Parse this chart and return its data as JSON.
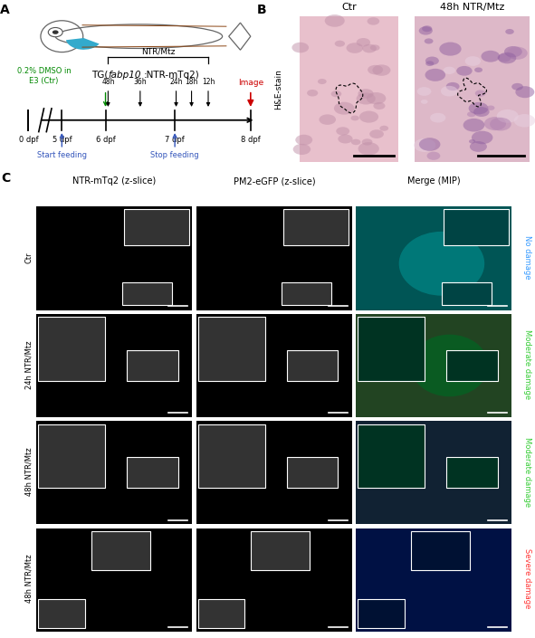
{
  "fig_width": 5.91,
  "fig_height": 7.05,
  "panel_A_label": "A",
  "panel_B_label": "B",
  "panel_C_label": "C",
  "tg_text": "TG(​fabp10​:NTR-mTq2)",
  "dmso_label": "0.2% DMSO in\nE3 (Ctr)",
  "ntr_label": "NTR/Mtz",
  "image_label": "Image",
  "start_feeding": "Start feeding",
  "stop_feeding": "Stop feeding",
  "ntr_times": [
    "48h",
    "36h",
    "24h",
    "18h",
    "12h"
  ],
  "ctr_label": "Ctr",
  "ntr48_label": "48h NTR/Mtz",
  "he_stain": "H&E-stain",
  "col1_title": "NTR-mTq2 (z-slice)",
  "col2_title": "PM2-eGFP (z-slice)",
  "col3_title": "Merge (MIP)",
  "row_labels_left": [
    "Ctr",
    "24h NTR/Mtz",
    "48h NTR/Mtz",
    "48h NTR/Mtz"
  ],
  "side_labels": [
    "No damage",
    "Moderate damage",
    "Moderate damage",
    "Severe damage"
  ],
  "side_label_colors": [
    "#3399FF",
    "#33CC33",
    "#33CC33",
    "#FF3333"
  ],
  "green_color": "#008800",
  "blue_arrow_color": "#3355BB",
  "red_arrow_color": "#CC0000"
}
